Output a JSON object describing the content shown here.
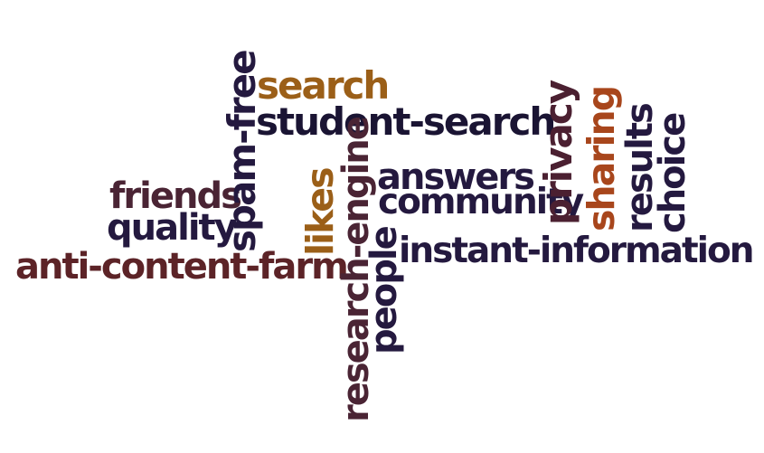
{
  "words": {
    "search": "search",
    "student_search": "student-search",
    "spam_free": "spam-free",
    "privacy": "privacy",
    "sharing": "sharing",
    "results": "results",
    "choice": "choice",
    "answers": "answers",
    "community": "community",
    "friends": "friends",
    "quality": "quality",
    "likes": "likes",
    "research_engine": "research-engine",
    "people": "people",
    "instant_information": "instant-information",
    "anti_content_farm": "anti-content-farm"
  },
  "colors": {
    "navy": "#24193f",
    "ink": "#1a1433",
    "plum": "#4a2434",
    "maroon": "#5c2327",
    "gold": "#9b5f18",
    "rust": "#a8461c",
    "wine": "#4b2031"
  }
}
